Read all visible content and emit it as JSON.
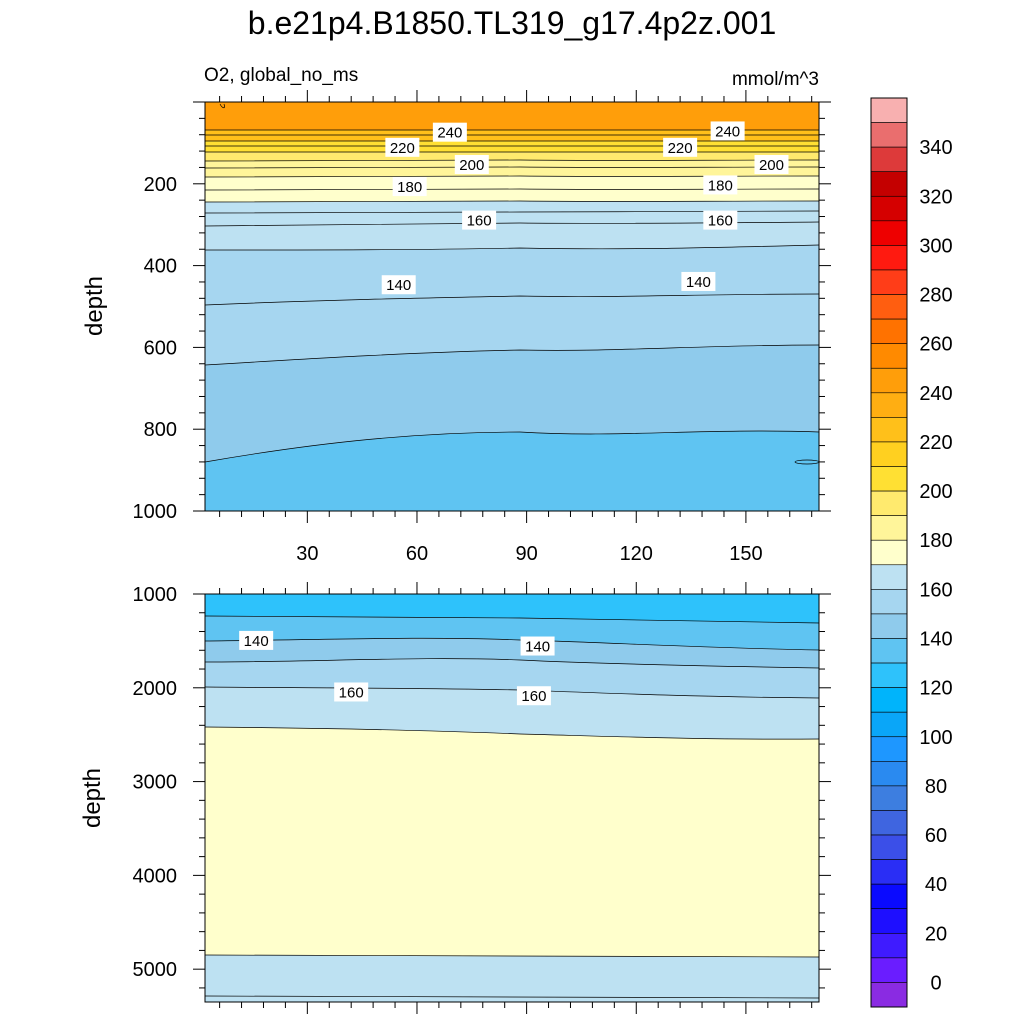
{
  "chart_data": {
    "type": "contour",
    "title": "b.e21p4.B1850.TL319_g17.4p2z.001",
    "variable_label": "O2, global_no_ms",
    "units": "mmol/m^3",
    "colorbar": {
      "labels": [
        "0",
        "20",
        "40",
        "60",
        "80",
        "100",
        "120",
        "140",
        "160",
        "180",
        "200",
        "220",
        "240",
        "260",
        "280",
        "300",
        "320",
        "340"
      ],
      "colors": [
        "#8a2be2",
        "#6a1dff",
        "#3f1bff",
        "#1e0fff",
        "#0a0aff",
        "#2a2ef5",
        "#3b4fe8",
        "#3f65e0",
        "#3d7ee0",
        "#2a8af0",
        "#1e97ff",
        "#0aa6f8",
        "#00b4fb",
        "#2ec2fb",
        "#5fc4f2",
        "#8fcbec",
        "#a6d6f0",
        "#bde1f2",
        "#ffffcc",
        "#fff59a",
        "#ffea6e",
        "#ffe033",
        "#ffd020",
        "#ffc01a",
        "#ffae12",
        "#ff9e0a",
        "#ff8a00",
        "#ff7200",
        "#ff5e10",
        "#ff3d18",
        "#ff1a10",
        "#ee0000",
        "#d50000",
        "#c40000",
        "#dd3a3a",
        "#ea6e6e",
        "#f8b0b0"
      ]
    },
    "x_axis": {
      "ticks": [
        30,
        60,
        90,
        120,
        150
      ],
      "xlim": [
        2,
        170
      ]
    },
    "upper_panel": {
      "ylabel": "depth",
      "ylim": [
        0,
        1000
      ],
      "yticks": [
        200,
        400,
        600,
        800,
        1000
      ],
      "contour_labels": [
        {
          "text": "240",
          "x": 69,
          "y": 75
        },
        {
          "text": "220",
          "x": 56,
          "y": 112
        },
        {
          "text": "200",
          "x": 75,
          "y": 154
        },
        {
          "text": "180",
          "x": 58,
          "y": 208
        },
        {
          "text": "160",
          "x": 77,
          "y": 290
        },
        {
          "text": "140",
          "x": 55,
          "y": 448
        },
        {
          "text": "240",
          "x": 145,
          "y": 72
        },
        {
          "text": "220",
          "x": 132,
          "y": 112
        },
        {
          "text": "200",
          "x": 157,
          "y": 154
        },
        {
          "text": "180",
          "x": 143,
          "y": 204
        },
        {
          "text": "160",
          "x": 143,
          "y": 290
        },
        {
          "text": "140",
          "x": 137,
          "y": 440
        }
      ]
    },
    "lower_panel": {
      "ylabel": "depth",
      "ylim": [
        1000,
        5350
      ],
      "yticks": [
        1000,
        2000,
        3000,
        4000,
        5000
      ],
      "contour_labels": [
        {
          "text": "140",
          "x": 16,
          "y": 1500
        },
        {
          "text": "140",
          "x": 93,
          "y": 1560
        },
        {
          "text": "160",
          "x": 42,
          "y": 2050
        },
        {
          "text": "160",
          "x": 92,
          "y": 2090
        }
      ]
    }
  }
}
